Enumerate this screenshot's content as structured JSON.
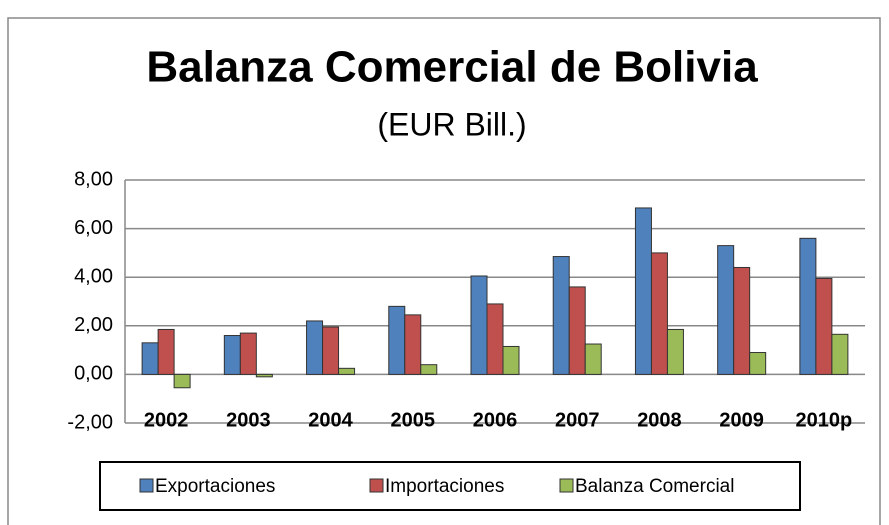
{
  "chart_data": {
    "type": "bar",
    "title": "Balanza Comercial de Bolivia",
    "subtitle": "(EUR Bill.)",
    "categories": [
      "2002",
      "2003",
      "2004",
      "2005",
      "2006",
      "2007",
      "2008",
      "2009",
      "2010p"
    ],
    "series": [
      {
        "name": "Exportaciones",
        "color": "#4f81bd",
        "values": [
          1.3,
          1.6,
          2.2,
          2.8,
          4.05,
          4.85,
          6.85,
          5.3,
          5.6
        ]
      },
      {
        "name": "Importaciones",
        "color": "#c0504d",
        "values": [
          1.85,
          1.7,
          1.95,
          2.45,
          2.9,
          3.6,
          5.0,
          4.4,
          3.95
        ]
      },
      {
        "name": "Balanza Comercial",
        "color": "#9bbb59",
        "values": [
          -0.55,
          -0.1,
          0.25,
          0.4,
          1.15,
          1.25,
          1.85,
          0.9,
          1.65
        ]
      }
    ],
    "ylim": [
      -2,
      8
    ],
    "yticks": [
      {
        "value": -2,
        "label": "-2,00"
      },
      {
        "value": 0,
        "label": "0,00"
      },
      {
        "value": 2,
        "label": "2,00"
      },
      {
        "value": 4,
        "label": "4,00"
      },
      {
        "value": 6,
        "label": "6,00"
      },
      {
        "value": 8,
        "label": "8,00"
      }
    ],
    "grid": true,
    "legend": "bottom"
  }
}
